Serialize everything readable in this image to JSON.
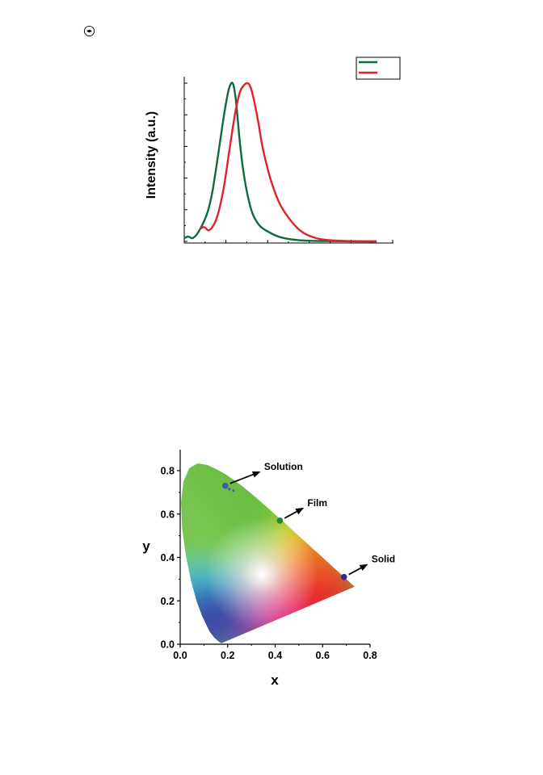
{
  "icons": {
    "page_mark": "circled-dot-icon"
  },
  "chart_data": [
    {
      "type": "line",
      "title": "",
      "xlabel": "",
      "ylabel": "Intensity (a.u.)",
      "grid": false,
      "legend": {
        "placement": "top-right",
        "entries": [
          "",
          ""
        ]
      },
      "xlim": [
        0,
        1
      ],
      "ylim": [
        0,
        1.05
      ],
      "series": [
        {
          "color": "#0f6a3c",
          "x": [
            0.0,
            0.02,
            0.04,
            0.06,
            0.08,
            0.1,
            0.12,
            0.14,
            0.16,
            0.18,
            0.2,
            0.22,
            0.235,
            0.245,
            0.255,
            0.265,
            0.275,
            0.29,
            0.31,
            0.33,
            0.35,
            0.38,
            0.42,
            0.46,
            0.5,
            0.55,
            0.6,
            0.7,
            0.8,
            0.9,
            0.96
          ],
          "y": [
            0.02,
            0.03,
            0.02,
            0.04,
            0.08,
            0.13,
            0.2,
            0.31,
            0.47,
            0.64,
            0.81,
            0.95,
            1.0,
            0.99,
            0.92,
            0.8,
            0.66,
            0.49,
            0.33,
            0.22,
            0.15,
            0.095,
            0.06,
            0.035,
            0.02,
            0.01,
            0.005,
            0.002,
            0.001,
            0.0,
            0.0
          ]
        },
        {
          "color": "#e0232a",
          "x": [
            0.08,
            0.1,
            0.12,
            0.14,
            0.16,
            0.18,
            0.2,
            0.22,
            0.24,
            0.26,
            0.28,
            0.3,
            0.315,
            0.325,
            0.335,
            0.35,
            0.37,
            0.39,
            0.42,
            0.45,
            0.48,
            0.52,
            0.56,
            0.6,
            0.66,
            0.72,
            0.8,
            0.9,
            0.96
          ],
          "y": [
            0.08,
            0.09,
            0.07,
            0.09,
            0.14,
            0.23,
            0.36,
            0.53,
            0.7,
            0.85,
            0.95,
            0.99,
            1.0,
            0.99,
            0.96,
            0.88,
            0.75,
            0.6,
            0.44,
            0.32,
            0.23,
            0.15,
            0.09,
            0.05,
            0.02,
            0.008,
            0.003,
            0.001,
            0.0
          ]
        }
      ]
    },
    {
      "type": "scatter",
      "title": "",
      "xlabel": "x",
      "ylabel": "y",
      "grid": false,
      "xlim": [
        0.0,
        0.8
      ],
      "ylim": [
        0.0,
        0.85
      ],
      "xticks": [
        "0.0",
        "0.2",
        "0.4",
        "0.6",
        "0.8"
      ],
      "yticks": [
        "0.0",
        "0.2",
        "0.4",
        "0.6",
        "0.8"
      ],
      "background": "CIE 1931 chromaticity diagram",
      "points": [
        {
          "label": "Solution",
          "x": 0.19,
          "y": 0.73,
          "color": "#3a5bb0"
        },
        {
          "label": "Film",
          "x": 0.42,
          "y": 0.57,
          "color": "#1e8a3c"
        },
        {
          "label": "Solid",
          "x": 0.69,
          "y": 0.31,
          "color": "#2a2e8c"
        }
      ]
    }
  ]
}
